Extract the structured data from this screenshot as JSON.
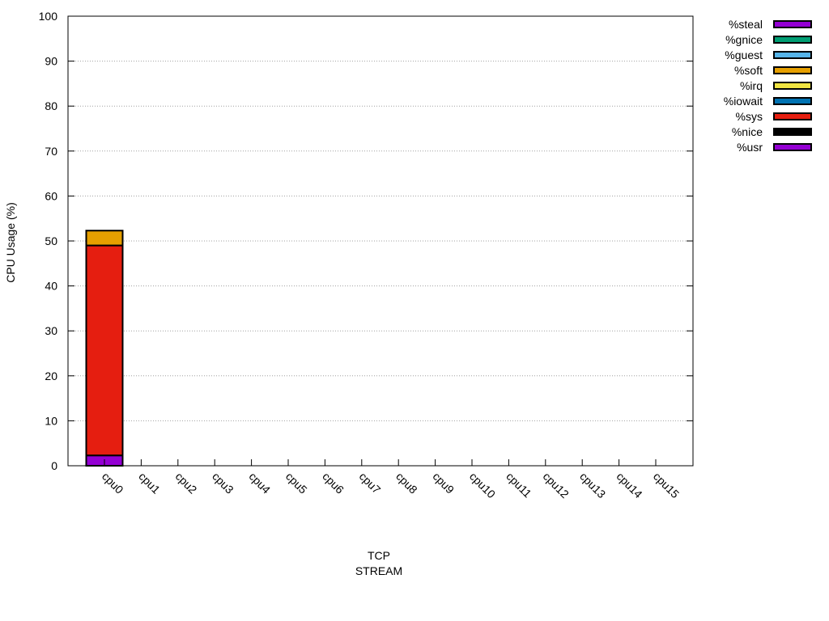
{
  "chart_data": {
    "type": "bar",
    "stacked": true,
    "ylabel": "CPU Usage (%)",
    "xlabel_lines": [
      "TCP",
      "STREAM"
    ],
    "ylim": [
      0,
      100
    ],
    "yticks": [
      0,
      10,
      20,
      30,
      40,
      50,
      60,
      70,
      80,
      90,
      100
    ],
    "grid": "horizontal-dotted",
    "legend_position": "top-right-outside",
    "categories": [
      "cpu0",
      "cpu1",
      "cpu2",
      "cpu3",
      "cpu4",
      "cpu5",
      "cpu6",
      "cpu7",
      "cpu8",
      "cpu9",
      "cpu10",
      "cpu11",
      "cpu12",
      "cpu13",
      "cpu14",
      "cpu15"
    ],
    "series": [
      {
        "name": "%usr",
        "color": "#9400d3",
        "values": [
          2.3,
          0,
          0,
          0,
          0,
          0,
          0,
          0,
          0,
          0,
          0,
          0,
          0,
          0,
          0,
          0
        ]
      },
      {
        "name": "%nice",
        "color": "#000000",
        "values": [
          0,
          0,
          0,
          0,
          0,
          0,
          0,
          0,
          0,
          0,
          0,
          0,
          0,
          0,
          0,
          0
        ]
      },
      {
        "name": "%sys",
        "color": "#e51e10",
        "values": [
          46.7,
          0,
          0,
          0,
          0,
          0,
          0,
          0,
          0,
          0,
          0,
          0,
          0,
          0,
          0,
          0
        ]
      },
      {
        "name": "%iowait",
        "color": "#0072b2",
        "values": [
          0,
          0,
          0,
          0,
          0,
          0,
          0,
          0,
          0,
          0,
          0,
          0,
          0,
          0,
          0,
          0
        ]
      },
      {
        "name": "%irq",
        "color": "#f0e442",
        "values": [
          0,
          0,
          0,
          0,
          0,
          0,
          0,
          0,
          0,
          0,
          0,
          0,
          0,
          0,
          0,
          0
        ]
      },
      {
        "name": "%soft",
        "color": "#e69f00",
        "values": [
          3.3,
          0,
          0,
          0,
          0,
          0,
          0,
          0,
          0,
          0,
          0,
          0,
          0,
          0,
          0,
          0
        ]
      },
      {
        "name": "%guest",
        "color": "#56b4e9",
        "values": [
          0,
          0,
          0,
          0,
          0,
          0,
          0,
          0,
          0,
          0,
          0,
          0,
          0,
          0,
          0,
          0
        ]
      },
      {
        "name": "%gnice",
        "color": "#009e73",
        "values": [
          0,
          0,
          0,
          0,
          0,
          0,
          0,
          0,
          0,
          0,
          0,
          0,
          0,
          0,
          0,
          0
        ]
      },
      {
        "name": "%steal",
        "color": "#9400d3",
        "values": [
          0,
          0,
          0,
          0,
          0,
          0,
          0,
          0,
          0,
          0,
          0,
          0,
          0,
          0,
          0,
          0
        ]
      }
    ]
  }
}
